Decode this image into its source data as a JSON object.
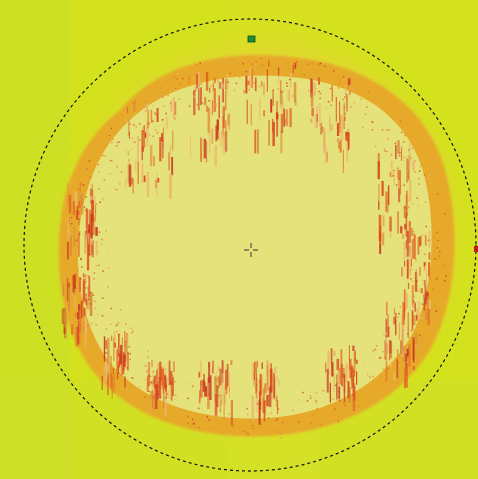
{
  "image": {
    "background_color": "#d4e11d",
    "ring_color": "#e7a92c",
    "core_color": "#e6e27b",
    "streak_color": "#d9461c",
    "selection_stroke": "#111111",
    "anchor_color": "#1f8f3a",
    "edge_marker_color": "#c8141b"
  },
  "icons": {
    "center": "crosshair-icon",
    "anchor": "handle-icon",
    "edge": "handle-icon"
  }
}
